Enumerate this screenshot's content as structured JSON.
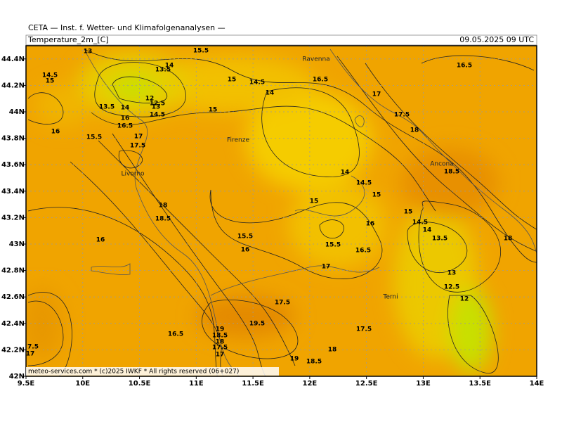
{
  "header": {
    "institute": "CETA — Inst. f. Wetter- und Klimafolgenanalysen —",
    "title": "Temperature_2m_[C]",
    "valid_time": "09.05.2025 09 UTC"
  },
  "map": {
    "xlim": [
      9.5,
      14
    ],
    "ylim": [
      42,
      44.5
    ],
    "xticks": [
      {
        "value": 9.5,
        "label": "9.5E"
      },
      {
        "value": 10,
        "label": "10E"
      },
      {
        "value": 10.5,
        "label": "10.5E"
      },
      {
        "value": 11,
        "label": "11E"
      },
      {
        "value": 11.5,
        "label": "11.5E"
      },
      {
        "value": 12,
        "label": "12E"
      },
      {
        "value": 12.5,
        "label": "12.5E"
      },
      {
        "value": 13,
        "label": "13E"
      },
      {
        "value": 13.5,
        "label": "13.5E"
      },
      {
        "value": 14,
        "label": "14E"
      }
    ],
    "yticks": [
      {
        "value": 42,
        "label": "42N"
      },
      {
        "value": 42.2,
        "label": "42.2N"
      },
      {
        "value": 42.4,
        "label": "42.4N"
      },
      {
        "value": 42.6,
        "label": "42.6N"
      },
      {
        "value": 42.8,
        "label": "42.8N"
      },
      {
        "value": 43,
        "label": "43N"
      },
      {
        "value": 43.2,
        "label": "43.2N"
      },
      {
        "value": 43.4,
        "label": "43.4N"
      },
      {
        "value": 43.6,
        "label": "43.6N"
      },
      {
        "value": 43.8,
        "label": "43.8N"
      },
      {
        "value": 44,
        "label": "44N"
      },
      {
        "value": 44.2,
        "label": "44.2N"
      },
      {
        "value": 44.4,
        "label": "44.4N"
      }
    ],
    "cities": [
      "Ravenna",
      "Firenze",
      "Livorno",
      "Ancona",
      "Terni"
    ],
    "contour_labels": [
      "13",
      "15.5",
      "14.5",
      "15",
      "14",
      "13.5",
      "15",
      "14.5",
      "16.5",
      "14",
      "16.5",
      "17",
      "12",
      "12.5",
      "13",
      "13.5",
      "14",
      "14.5",
      "15",
      "17.5",
      "16",
      "16.5",
      "16",
      "18",
      "15.5",
      "17",
      "17.5",
      "14",
      "18.5",
      "14.5",
      "15",
      "15",
      "18",
      "15",
      "18.5",
      "14.5",
      "16",
      "14",
      "13.5",
      "18",
      "15.5",
      "16",
      "15.5",
      "16",
      "16.5",
      "17",
      "13",
      "12.5",
      "12",
      "17.5",
      "19.5",
      "17.5",
      "19",
      "16.5",
      "18.5",
      "18",
      "17.5",
      "17",
      "18",
      "19",
      "18.5",
      "7.5",
      "17"
    ],
    "footer": "meteo-services.com * (c)2025 IWKF * All rights reserved (06+027)"
  }
}
